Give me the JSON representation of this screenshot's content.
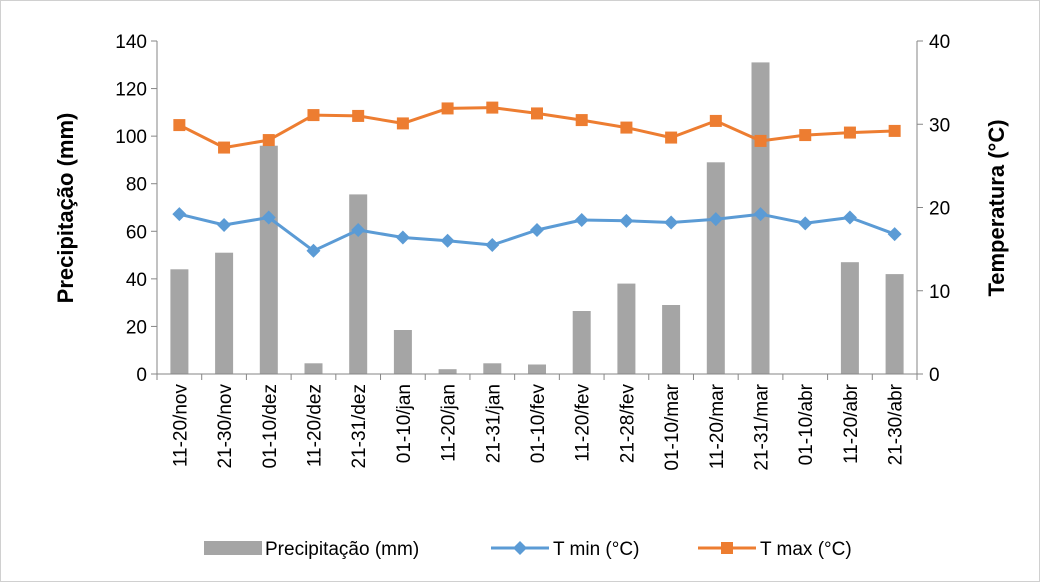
{
  "chart_data": {
    "type": "bar+line",
    "categories": [
      "11-20/nov",
      "21-30/nov",
      "01-10/dez",
      "11-20/dez",
      "21-31/dez",
      "01-10/jan",
      "11-20/jan",
      "21-31/jan",
      "01-10/fev",
      "11-20/fev",
      "21-28/fev",
      "01-10/mar",
      "11-20/mar",
      "21-31/mar",
      "01-10/abr",
      "11-20/abr",
      "21-30/abr"
    ],
    "series": [
      {
        "name": "Precipitação (mm)",
        "kind": "bar",
        "axis": "left",
        "color": "#a5a5a5",
        "values": [
          44,
          51,
          96,
          4.5,
          75.5,
          18.5,
          2,
          4.5,
          4,
          26.5,
          38,
          29,
          89,
          131,
          0,
          47,
          42
        ]
      },
      {
        "name": "T min (°C)",
        "kind": "line",
        "axis": "right",
        "color": "#5b9bd5",
        "marker": "diamond",
        "values": [
          19.2,
          17.9,
          18.8,
          14.8,
          17.3,
          16.4,
          16.0,
          15.5,
          17.3,
          18.5,
          18.4,
          18.2,
          18.6,
          19.2,
          18.1,
          18.8,
          16.8
        ]
      },
      {
        "name": "T max (°C)",
        "kind": "line",
        "axis": "right",
        "color": "#ed7d31",
        "marker": "square",
        "values": [
          29.9,
          27.2,
          28.1,
          31.1,
          31.0,
          30.1,
          31.9,
          32.0,
          31.3,
          30.5,
          29.6,
          28.4,
          30.4,
          28.0,
          28.7,
          29.0,
          29.2
        ]
      }
    ],
    "ylabel": "Precipitação (mm)",
    "y2label": "Temperatura (°C)",
    "ylim": [
      0,
      140
    ],
    "y2lim": [
      0,
      40
    ],
    "yticks": [
      "0",
      "20",
      "40",
      "60",
      "80",
      "100",
      "120",
      "140"
    ],
    "y2ticks": [
      "0",
      "10",
      "20",
      "30",
      "40"
    ],
    "grid": false,
    "legend_position": "bottom",
    "legend": [
      "Precipitação (mm)",
      "T min (°C)",
      "T max (°C)"
    ]
  }
}
